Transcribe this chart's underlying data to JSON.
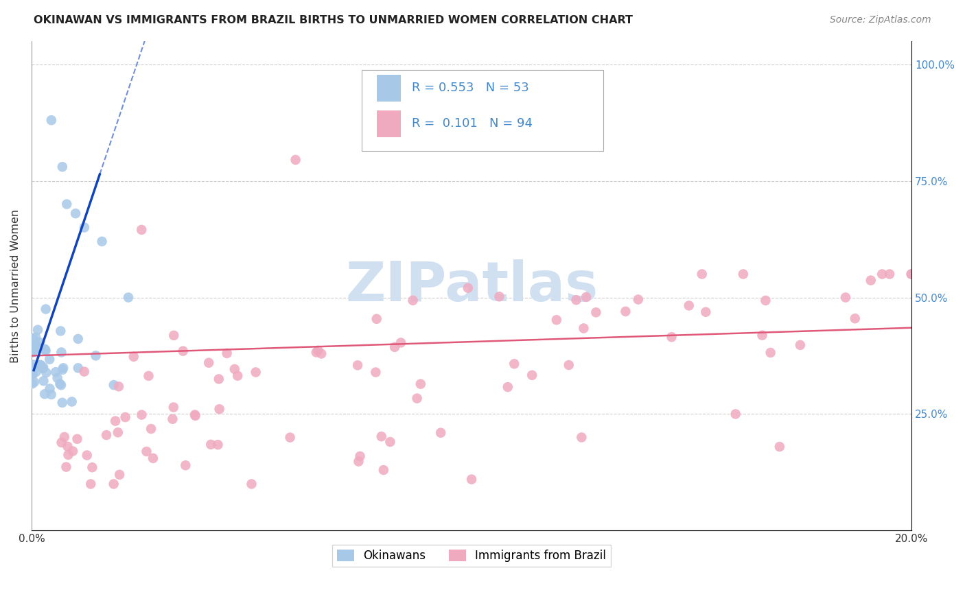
{
  "title": "OKINAWAN VS IMMIGRANTS FROM BRAZIL BIRTHS TO UNMARRIED WOMEN CORRELATION CHART",
  "source": "Source: ZipAtlas.com",
  "ylabel": "Births to Unmarried Women",
  "xlim": [
    0.0,
    0.2
  ],
  "ylim": [
    0.0,
    1.05
  ],
  "okinawan_color": "#a8c8e8",
  "brazil_color": "#f0aac0",
  "okinawan_R": 0.553,
  "okinawan_N": 53,
  "brazil_R": 0.101,
  "brazil_N": 94,
  "regression_line_color_okinawan": "#1144bb",
  "regression_line_color_brazil": "#e05878",
  "legend_label_okinawan": "Okinawans",
  "legend_label_brazil": "Immigrants from Brazil",
  "watermark": "ZIPatlas",
  "watermark_color": "#d0e0f0",
  "grid_color": "#cccccc",
  "right_tick_color": "#4488cc",
  "title_color": "#222222",
  "source_color": "#888888"
}
